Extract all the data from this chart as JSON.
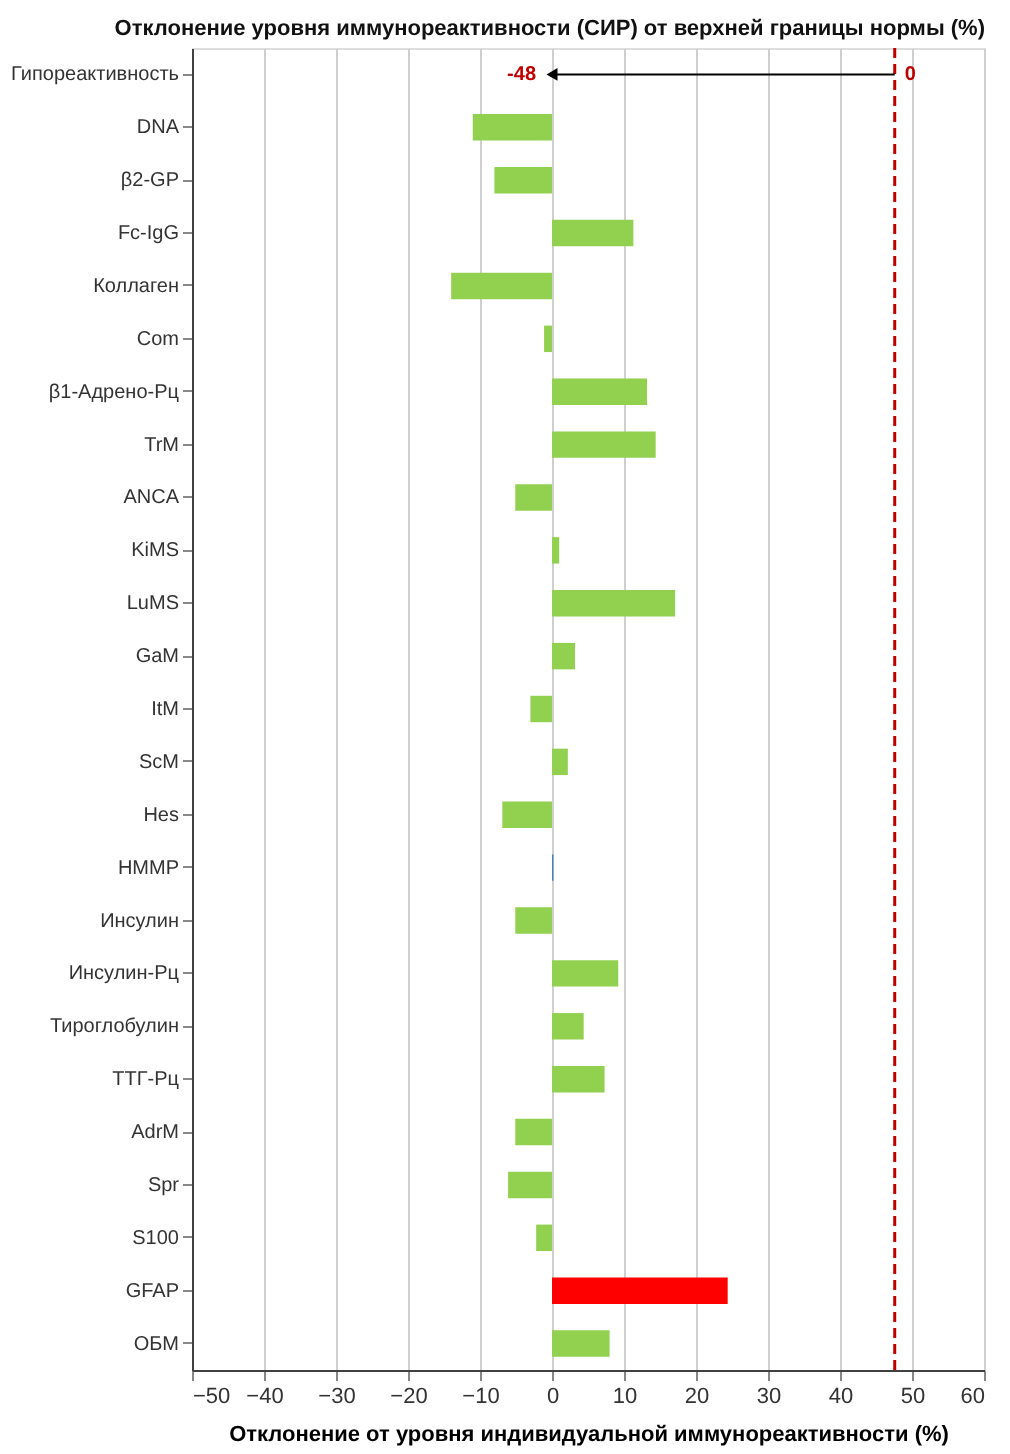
{
  "chart_data": {
    "type": "bar",
    "orientation": "horizontal",
    "title": "Отклонение уровня  иммунореактивности  (СИР) от верхней границы нормы (%)",
    "xlabel": "Отклонение от уровня индивидуальной  иммунореактивности  (%)",
    "categories": [
      "Гипореактивность",
      "DNA",
      "β2-GP",
      "Fc-IgG",
      "Коллаген",
      "Com",
      "β1-Адрено-Рц",
      "TrM",
      "ANCA",
      "KiMS",
      "LuMS",
      "GaM",
      "ItM",
      "ScM",
      "Hes",
      "HMMP",
      "Инсулин",
      "Инсулин-Рц",
      "Тироглобулин",
      "ТТГ-Рц",
      "AdrM",
      "Spr",
      "S100",
      "GFAP",
      "ОБМ"
    ],
    "values": [
      null,
      -11.0,
      -8.0,
      11.3,
      -14.0,
      -1.1,
      13.2,
      14.4,
      -5.1,
      1.0,
      17.1,
      3.2,
      -3.0,
      2.2,
      -6.9,
      0.2,
      -5.1,
      9.2,
      4.4,
      7.3,
      -5.1,
      -6.1,
      -2.2,
      24.4,
      8.0
    ],
    "colors": [
      "#92d050",
      "#92d050",
      "#92d050",
      "#92d050",
      "#92d050",
      "#92d050",
      "#92d050",
      "#92d050",
      "#92d050",
      "#92d050",
      "#92d050",
      "#92d050",
      "#92d050",
      "#92d050",
      "#92d050",
      "#4a7ebb",
      "#92d050",
      "#92d050",
      "#92d050",
      "#92d050",
      "#92d050",
      "#92d050",
      "#92d050",
      "#ff0000",
      "#92d050"
    ],
    "xlim": [
      -50,
      60
    ],
    "xticks": [
      -50,
      -40,
      -30,
      -20,
      -10,
      0,
      10,
      20,
      30,
      40,
      50,
      60
    ],
    "grid": "x",
    "ref_lines": [
      {
        "axis": "x",
        "value": 47.6,
        "color": "#c00000",
        "line_style": "dashed"
      }
    ],
    "annotations": [
      {
        "text": "-48",
        "x": 0,
        "y": "Гипореактивность"
      },
      {
        "text": "0",
        "x": 47.6,
        "y": "Гипореактивность"
      }
    ]
  }
}
